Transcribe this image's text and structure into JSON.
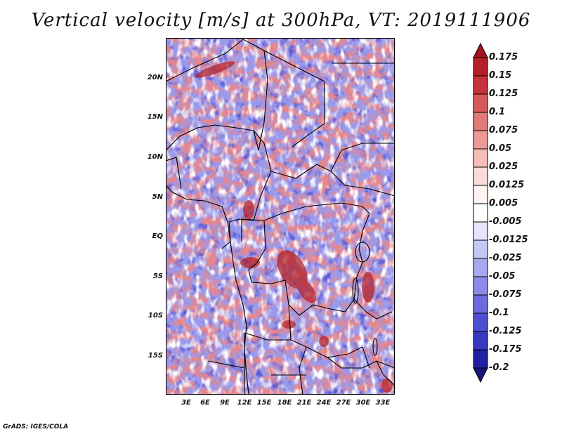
{
  "title": "Vertical velocity [m/s] at 300hPa, VT: 2019111906",
  "footer": "GrADS: IGES/COLA",
  "map": {
    "lat_ticks": [
      "20N",
      "15N",
      "10N",
      "5N",
      "EQ",
      "5S",
      "10S",
      "15S"
    ],
    "lon_ticks": [
      "3E",
      "6E",
      "9E",
      "12E",
      "15E",
      "18E",
      "21E",
      "24E",
      "27E",
      "30E",
      "33E"
    ]
  },
  "colorbar": {
    "levels": [
      "0.175",
      "0.15",
      "0.125",
      "0.1",
      "0.075",
      "0.05",
      "0.025",
      "0.0125",
      "0.005",
      "-0.005",
      "-0.0125",
      "-0.025",
      "-0.05",
      "-0.075",
      "-0.1",
      "-0.125",
      "-0.175",
      "-0.2"
    ],
    "colors": [
      "#a0141e",
      "#b51e26",
      "#c8323a",
      "#d65a5a",
      "#e07a78",
      "#ec9a96",
      "#f5bcb8",
      "#fadbd8",
      "#fff2f0",
      "#ffffff",
      "#e4e4fb",
      "#c6c6f5",
      "#a8a8ee",
      "#8c8ce8",
      "#6b6bdd",
      "#4f4fd1",
      "#3838c0",
      "#2020a0",
      "#15157a"
    ]
  }
}
